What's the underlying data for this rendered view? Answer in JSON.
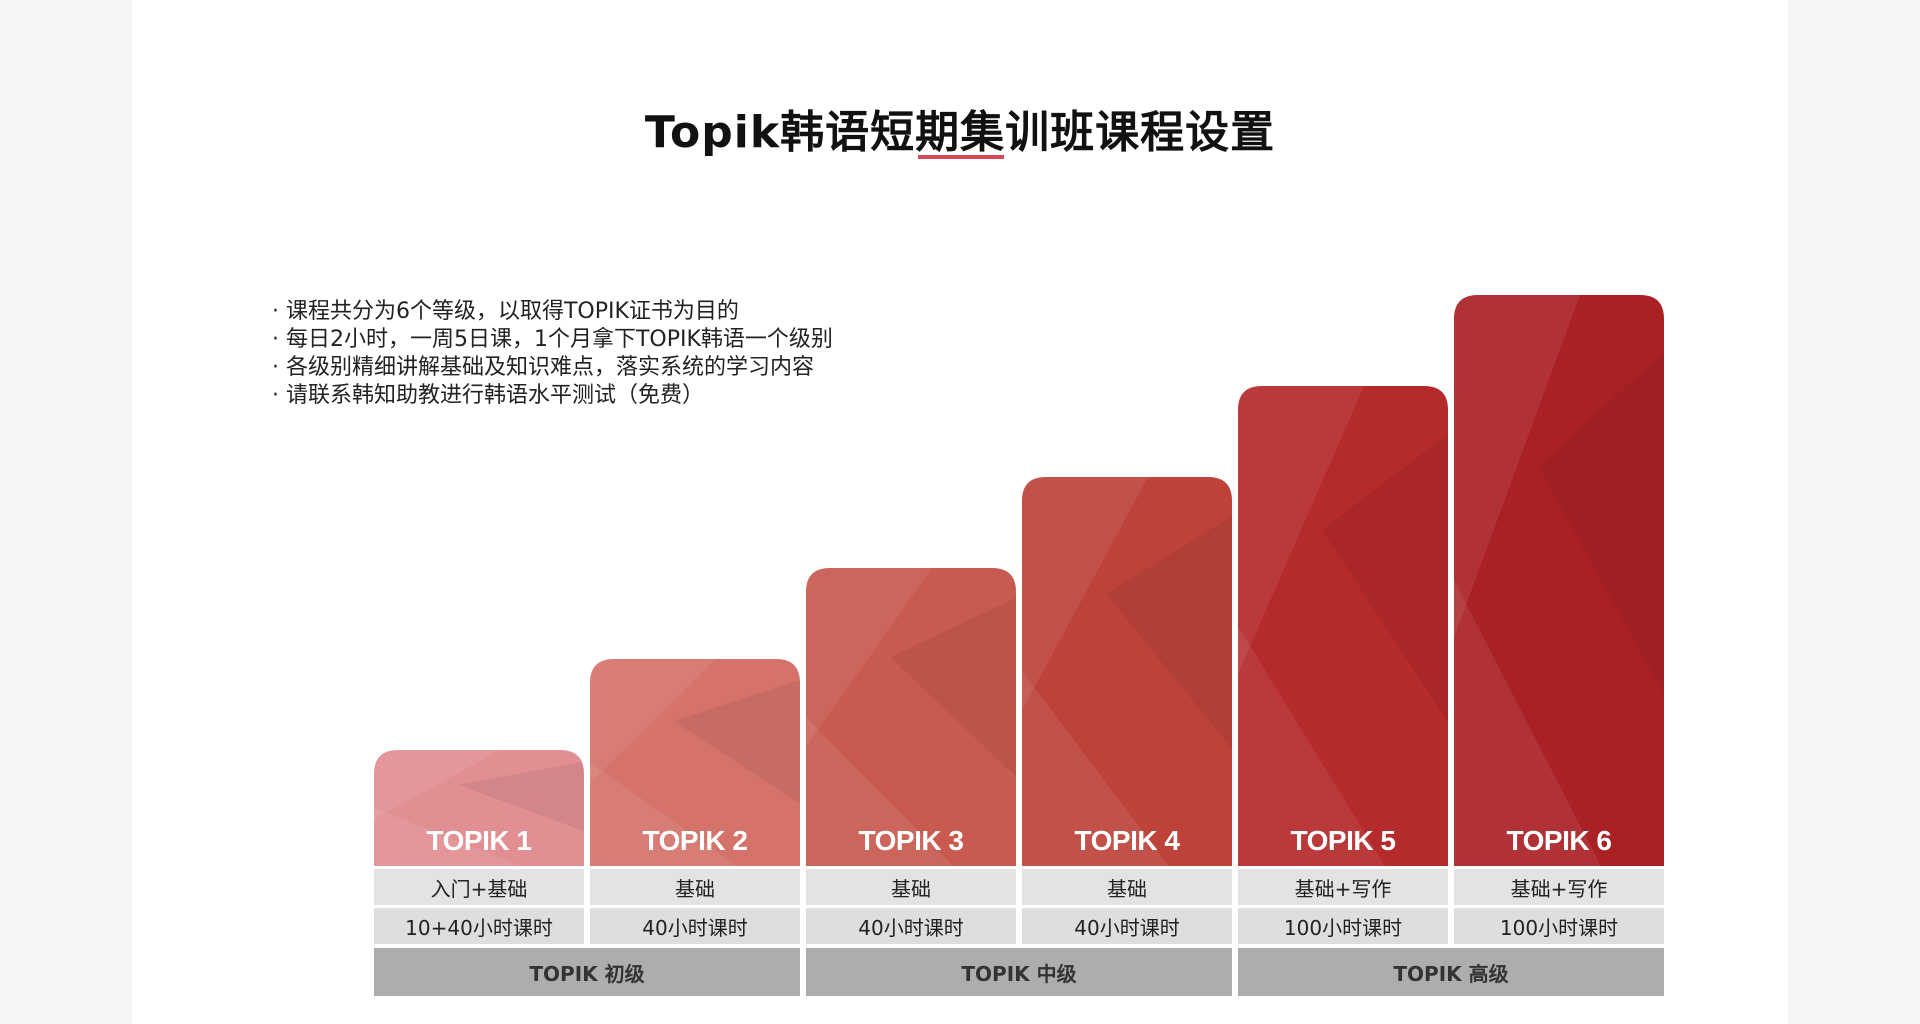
{
  "title": "Topik韩语短期集训班课程设置",
  "bullets": [
    "课程共分为6个等级，以取得TOPIK证书为目的",
    "每日2小时，一周5日课，1个月拿下TOPIK韩语一个级别",
    "各级别精细讲解基础及知识难点，落实系统的学习内容",
    "请联系韩知助教进行韩语水平测试（免费）"
  ],
  "chart_data": {
    "type": "bar",
    "categories": [
      "TOPIK 1",
      "TOPIK 2",
      "TOPIK 3",
      "TOPIK 4",
      "TOPIK 5",
      "TOPIK 6"
    ],
    "values": [
      1,
      2,
      3,
      4,
      5,
      6
    ],
    "content": [
      "入门+基础",
      "基础",
      "基础",
      "基础",
      "基础+写作",
      "基础+写作"
    ],
    "hours": [
      "10+40小时课时",
      "40小时课时",
      "40小时课时",
      "40小时课时",
      "100小时课时",
      "100小时课时"
    ],
    "groups": [
      "TOPIK 初级",
      "TOPIK 中级",
      "TOPIK 高级"
    ],
    "colors": [
      "#e18f92",
      "#d5726a",
      "#c85a4f",
      "#bd433a",
      "#b52a2b",
      "#aa2125"
    ]
  }
}
